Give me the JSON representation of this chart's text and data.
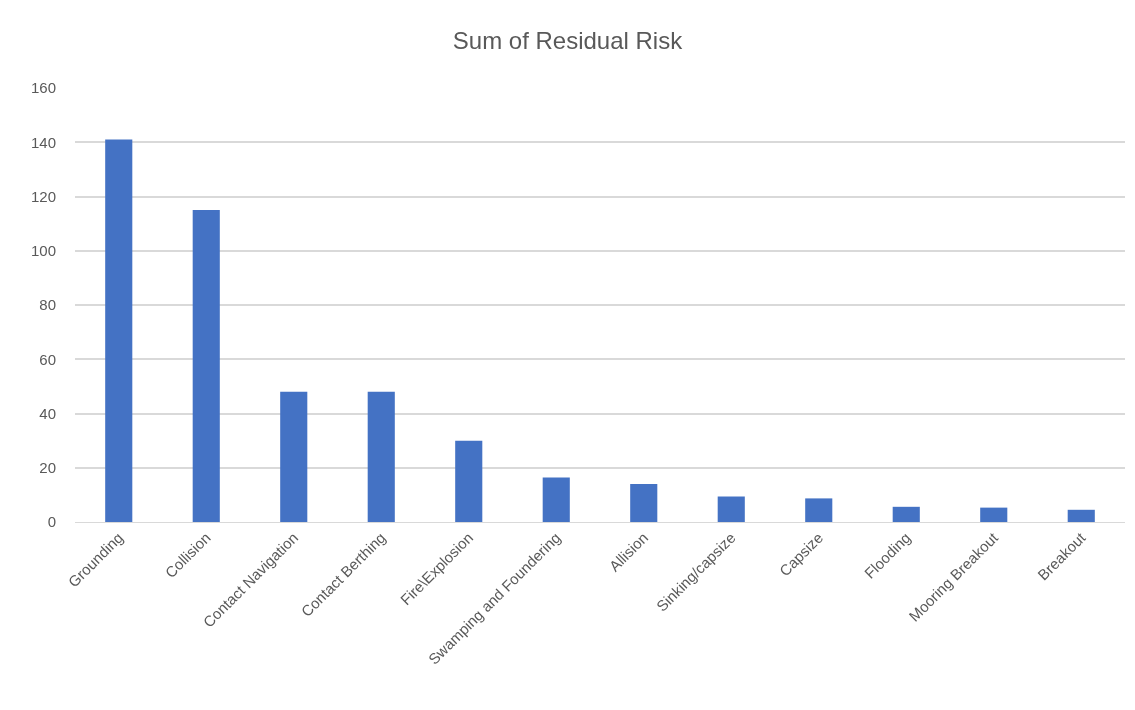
{
  "chart_data": {
    "type": "bar",
    "title": "Sum of Residual Risk",
    "categories": [
      "Grounding",
      "Collision",
      "Contact Navigation",
      "Contact Berthing",
      "Fire\\Explosion",
      "Swamping and Foundering",
      "Allision",
      "Sinking/capsize",
      "Capsize",
      "Flooding",
      "Mooring Breakout",
      "Breakout"
    ],
    "values": [
      141,
      115,
      48,
      48,
      30,
      16.4,
      14,
      9.4,
      8.7,
      5.6,
      5.3,
      4.5
    ],
    "color": "#4472c4",
    "ylim": [
      0,
      160
    ],
    "yticks": [
      0,
      20,
      40,
      60,
      80,
      100,
      120,
      140,
      160
    ],
    "grid": "y"
  }
}
